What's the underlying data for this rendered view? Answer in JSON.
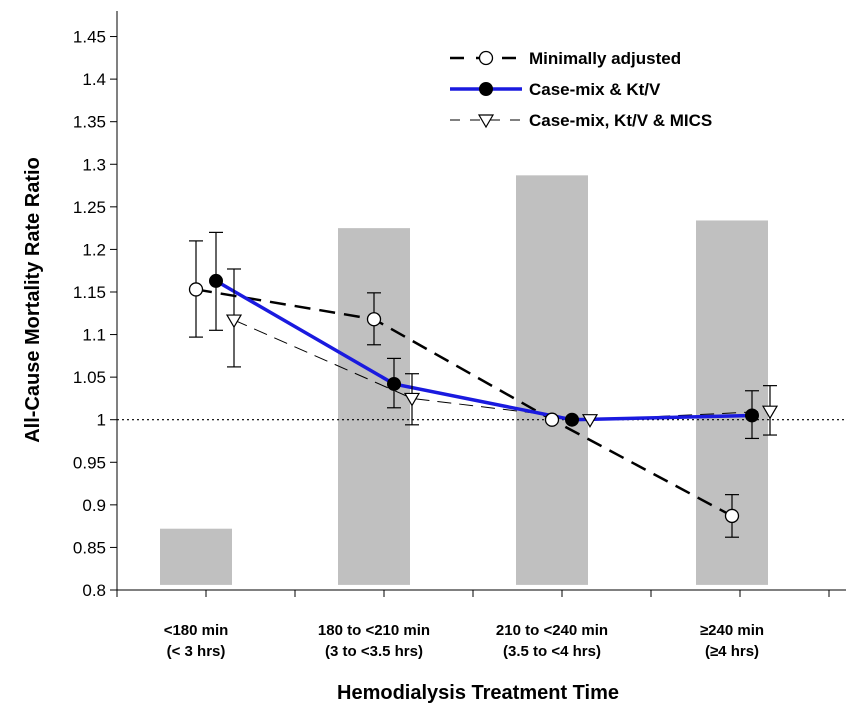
{
  "chart_data": {
    "type": "line",
    "xlabel": "Hemodialysis Treatment Time",
    "ylabel": "All-Cause Mortality Rate Ratio",
    "ylim": [
      0.8,
      1.48
    ],
    "yticks": [
      "0.8",
      "0.85",
      "0.9",
      "0.95",
      "1",
      "1.05",
      "1.1",
      "1.15",
      "1.2",
      "1.25",
      "1.3",
      "1.35",
      "1.4",
      "1.45"
    ],
    "categories": [
      {
        "line1": "<180 min",
        "line2": "(< 3 hrs)"
      },
      {
        "line1": "180 to <210 min",
        "line2": "(3 to <3.5 hrs)"
      },
      {
        "line1": "210 to <240 min",
        "line2": "(3.5 to <4 hrs)"
      },
      {
        "line1": "≥240 min",
        "line2": "(≥4 hrs)"
      }
    ],
    "reference_line": 1,
    "background_bars": [
      0.872,
      1.225,
      1.287,
      1.234
    ],
    "series": [
      {
        "name": "Minimally adjusted",
        "color": "#000000",
        "marker": "open-circle",
        "line_style": "long-dash",
        "values": [
          1.153,
          1.118,
          1.0,
          0.887
        ],
        "err_low": [
          1.097,
          1.088,
          1.0,
          0.862
        ],
        "err_high": [
          1.21,
          1.149,
          1.0,
          0.912
        ]
      },
      {
        "name": "Case-mix & Kt/V",
        "color": "#1a1adf",
        "marker": "filled-circle",
        "line_style": "solid",
        "values": [
          1.163,
          1.042,
          1.0,
          1.005
        ],
        "err_low": [
          1.105,
          1.014,
          1.0,
          0.978
        ],
        "err_high": [
          1.22,
          1.072,
          1.0,
          1.034
        ]
      },
      {
        "name": "Case-mix, Kt/V & MICS",
        "color": "#000000",
        "marker": "open-triangle-down",
        "line_style": "thin-dash",
        "values": [
          1.117,
          1.025,
          1.0,
          1.01
        ],
        "err_low": [
          1.062,
          0.994,
          1.0,
          0.982
        ],
        "err_high": [
          1.177,
          1.054,
          1.0,
          1.04
        ]
      }
    ]
  }
}
